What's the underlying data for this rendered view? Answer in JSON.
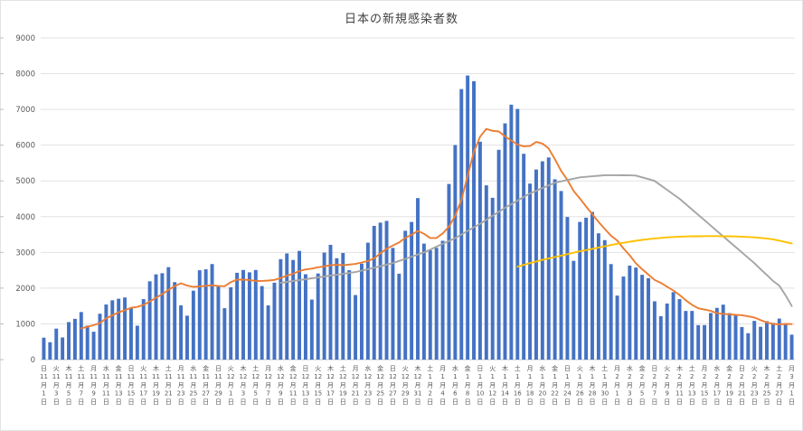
{
  "chart_data": {
    "type": "bar",
    "title": "日本の新規感染者数",
    "xlabel": "",
    "ylabel": "",
    "ylim": [
      0,
      9000
    ],
    "ytick_step": 1000,
    "yticks": [
      0,
      1000,
      2000,
      3000,
      4000,
      5000,
      6000,
      7000,
      8000,
      9000
    ],
    "grid": true,
    "legend_position": "none",
    "n_points": 121,
    "x_range": {
      "start": "11月1日",
      "end": "3月1日",
      "tick_every_days": 2
    },
    "series": [
      {
        "id": "daily_new_cases",
        "type": "bar",
        "color": "#4472C4",
        "start_index": 0,
        "values": [
          614,
          487,
          867,
          620,
          1050,
          1141,
          1331,
          952,
          780,
          1284,
          1543,
          1660,
          1704,
          1738,
          1441,
          950,
          1692,
          2191,
          2386,
          2418,
          2587,
          2168,
          1520,
          1229,
          1930,
          2501,
          2527,
          2674,
          2062,
          1439,
          2026,
          2430,
          2508,
          2442,
          2508,
          2058,
          1516,
          2152,
          2811,
          2971,
          2788,
          3041,
          2388,
          1680,
          2410,
          2994,
          3211,
          2837,
          2983,
          2502,
          1807,
          2686,
          3271,
          3742,
          3833,
          3881,
          3126,
          2403,
          3605,
          3852,
          4520,
          3246,
          3059,
          3127,
          3325,
          4915,
          6004,
          7569,
          7949,
          7790,
          6097,
          4876,
          4527,
          5870,
          6610,
          7133,
          7014,
          5759,
          4925,
          5320,
          5549,
          5656,
          5045,
          4717,
          3990,
          2764,
          3853,
          3971,
          4133,
          3534,
          3344,
          2673,
          1792,
          2324,
          2631,
          2576,
          2372,
          2279,
          1631,
          1216,
          1570,
          1887,
          1693,
          1361,
          1362,
          965,
          966,
          1304,
          1448,
          1538,
          1301,
          1234,
          912,
          739,
          1084,
          920,
          1076,
          1029,
          1148,
          999,
          698
        ]
      },
      {
        "id": "moving_average_orange",
        "type": "line",
        "color": "#ED7D31",
        "start_index": 6,
        "values": [
          873,
          921,
          963,
          1023,
          1154,
          1242,
          1322,
          1380,
          1450,
          1474,
          1533,
          1625,
          1729,
          1831,
          1952,
          2056,
          2137,
          2071,
          2034,
          2050,
          2066,
          2078,
          2063,
          2052,
          2166,
          2237,
          2238,
          2226,
          2202,
          2202,
          2213,
          2231,
          2285,
          2351,
          2401,
          2477,
          2524,
          2547,
          2584,
          2610,
          2645,
          2652,
          2643,
          2660,
          2678,
          2717,
          2757,
          2833,
          2975,
          3103,
          3192,
          3277,
          3409,
          3492,
          3603,
          3519,
          3402,
          3402,
          3533,
          3721,
          4028,
          4464,
          5135,
          5811,
          6236,
          6457,
          6402,
          6383,
          6246,
          6129,
          6018,
          5970,
          5977,
          6090,
          6044,
          5908,
          5610,
          5282,
          5029,
          4720,
          4511,
          4285,
          4068,
          3852,
          3656,
          3467,
          3329,
          3110,
          2919,
          2696,
          2530,
          2378,
          2229,
          2147,
          2039,
          1933,
          1807,
          1662,
          1531,
          1436,
          1401,
          1363,
          1300,
          1278,
          1269,
          1251,
          1243,
          1211,
          1179,
          1104,
          1038,
          999,
          987,
          999,
          993
        ]
      },
      {
        "id": "trend_gray",
        "type": "line",
        "color": "#A5A5A5",
        "start_index": 38,
        "values": [
          2150,
          2175,
          2200,
          2225,
          2250,
          2275,
          2300,
          2325,
          2350,
          2375,
          2400,
          2425,
          2450,
          2490,
          2530,
          2572,
          2615,
          2657,
          2700,
          2760,
          2820,
          2880,
          2940,
          3000,
          3080,
          3160,
          3240,
          3320,
          3400,
          3500,
          3600,
          3700,
          3800,
          3912,
          4025,
          4137,
          4250,
          4350,
          4450,
          4550,
          4650,
          4725,
          4800,
          4875,
          4950,
          4988,
          5025,
          5062,
          5100,
          5115,
          5130,
          5145,
          5160,
          5160,
          5160,
          5158,
          5155,
          5150,
          5100,
          5050,
          5000,
          4875,
          4750,
          4625,
          4500,
          4350,
          4200,
          4050,
          3900,
          3750,
          3600,
          3450,
          3300,
          3150,
          3000,
          2850,
          2700,
          2530,
          2370,
          2200,
          2070,
          1800,
          1500
        ]
      },
      {
        "id": "trend_yellow",
        "type": "line",
        "color": "#FFC000",
        "start_index": 76,
        "values": [
          2600,
          2650,
          2700,
          2745,
          2790,
          2830,
          2870,
          2910,
          2950,
          2990,
          3030,
          3065,
          3100,
          3135,
          3170,
          3205,
          3240,
          3270,
          3300,
          3325,
          3350,
          3370,
          3390,
          3405,
          3420,
          3430,
          3440,
          3445,
          3450,
          3452,
          3455,
          3455,
          3455,
          3452,
          3450,
          3445,
          3440,
          3430,
          3420,
          3405,
          3390,
          3365,
          3330,
          3290,
          3250
        ]
      }
    ],
    "xticks": [
      {
        "i": 0,
        "t": "日|11|月|1|日"
      },
      {
        "i": 2,
        "t": "火|11|月|3|日"
      },
      {
        "i": 4,
        "t": "木|11|月|5|日"
      },
      {
        "i": 6,
        "t": "土|11|月|7|日"
      },
      {
        "i": 8,
        "t": "月|11|月|9|日"
      },
      {
        "i": 10,
        "t": "水|11|月|11|日"
      },
      {
        "i": 12,
        "t": "金|11|月|13|日"
      },
      {
        "i": 14,
        "t": "日|11|月|15|日"
      },
      {
        "i": 16,
        "t": "火|11|月|17|日"
      },
      {
        "i": 18,
        "t": "木|11|月|19|日"
      },
      {
        "i": 20,
        "t": "土|11|月|21|日"
      },
      {
        "i": 22,
        "t": "月|11|月|23|日"
      },
      {
        "i": 24,
        "t": "水|11|月|25|日"
      },
      {
        "i": 26,
        "t": "金|11|月|27|日"
      },
      {
        "i": 28,
        "t": "日|11|月|29|日"
      },
      {
        "i": 30,
        "t": "火|12|月|1|日"
      },
      {
        "i": 32,
        "t": "木|12|月|3|日"
      },
      {
        "i": 34,
        "t": "土|12|月|5|日"
      },
      {
        "i": 36,
        "t": "月|12|月|7|日"
      },
      {
        "i": 38,
        "t": "水|12|月|9|日"
      },
      {
        "i": 40,
        "t": "金|12|月|11|日"
      },
      {
        "i": 42,
        "t": "日|12|月|13|日"
      },
      {
        "i": 44,
        "t": "火|12|月|15|日"
      },
      {
        "i": 46,
        "t": "木|12|月|17|日"
      },
      {
        "i": 48,
        "t": "土|12|月|19|日"
      },
      {
        "i": 50,
        "t": "月|12|月|21|日"
      },
      {
        "i": 52,
        "t": "水|12|月|23|日"
      },
      {
        "i": 54,
        "t": "金|12|月|25|日"
      },
      {
        "i": 56,
        "t": "日|12|月|27|日"
      },
      {
        "i": 58,
        "t": "火|12|月|29|日"
      },
      {
        "i": 60,
        "t": "木|12|月|31|日"
      },
      {
        "i": 62,
        "t": "土|1|月|2|日"
      },
      {
        "i": 64,
        "t": "月|1|月|4|日"
      },
      {
        "i": 66,
        "t": "水|1|月|6|日"
      },
      {
        "i": 68,
        "t": "金|1|月|8|日"
      },
      {
        "i": 70,
        "t": "日|1|月|10|日"
      },
      {
        "i": 72,
        "t": "火|1|月|12|日"
      },
      {
        "i": 74,
        "t": "木|1|月|14|日"
      },
      {
        "i": 76,
        "t": "土|1|月|16|日"
      },
      {
        "i": 78,
        "t": "月|1|月|18|日"
      },
      {
        "i": 80,
        "t": "水|1|月|20|日"
      },
      {
        "i": 82,
        "t": "金|1|月|22|日"
      },
      {
        "i": 84,
        "t": "日|1|月|24|日"
      },
      {
        "i": 86,
        "t": "火|1|月|26|日"
      },
      {
        "i": 88,
        "t": "木|1|月|28|日"
      },
      {
        "i": 90,
        "t": "土|1|月|30|日"
      },
      {
        "i": 92,
        "t": "月|2|月|1|日"
      },
      {
        "i": 94,
        "t": "水|2|月|3|日"
      },
      {
        "i": 96,
        "t": "金|2|月|5|日"
      },
      {
        "i": 98,
        "t": "日|2|月|7|日"
      },
      {
        "i": 100,
        "t": "火|2|月|9|日"
      },
      {
        "i": 102,
        "t": "木|2|月|11|日"
      },
      {
        "i": 104,
        "t": "土|2|月|13|日"
      },
      {
        "i": 106,
        "t": "月|2|月|15|日"
      },
      {
        "i": 108,
        "t": "水|2|月|17|日"
      },
      {
        "i": 110,
        "t": "金|2|月|19|日"
      },
      {
        "i": 112,
        "t": "日|2|月|21|日"
      },
      {
        "i": 114,
        "t": "火|2|月|23|日"
      },
      {
        "i": 116,
        "t": "木|2|月|25|日"
      },
      {
        "i": 118,
        "t": "土|2|月|27|日"
      },
      {
        "i": 120,
        "t": "月|3|月|1|日"
      }
    ]
  },
  "style_colors": {
    "grid": "#E2E2E2",
    "axis_line": "#C6C6C6",
    "edge_tick": "#BFBFBF",
    "axis_text": "#595959",
    "title_text": "#404040"
  }
}
